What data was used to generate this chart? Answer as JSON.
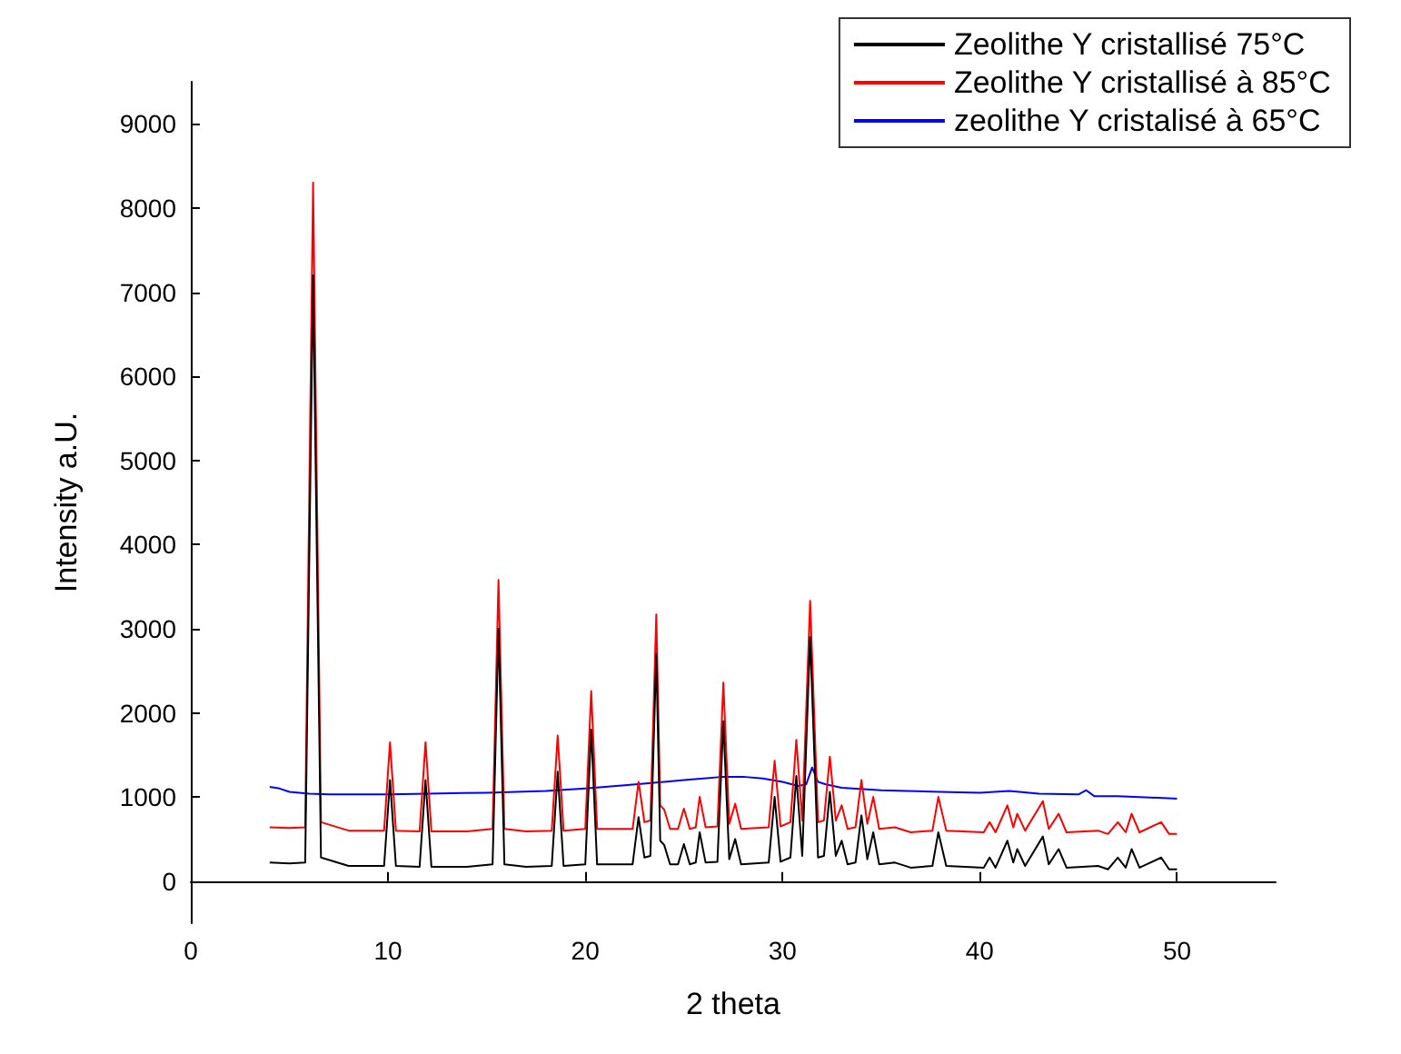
{
  "chart_data": {
    "type": "line",
    "xlabel": "2 theta",
    "ylabel": "Intensity a.U.",
    "xlim": [
      0,
      55
    ],
    "xticks": [
      0,
      10,
      20,
      30,
      40,
      50
    ],
    "ylim": [
      -500,
      9500
    ],
    "yticks": [
      0,
      1000,
      2000,
      3000,
      4000,
      5000,
      6000,
      7000,
      8000,
      9000
    ],
    "grid": false,
    "legend": "top right",
    "marker": "none",
    "line_style": "solid",
    "x": [
      4,
      5,
      5.8,
      6.2,
      6.6,
      8,
      9.8,
      10.1,
      10.4,
      11.6,
      11.9,
      12.2,
      14,
      15.3,
      15.6,
      15.9,
      17,
      18.3,
      18.6,
      18.9,
      20,
      20.3,
      20.6,
      22.4,
      22.7,
      23,
      23.3,
      23.6,
      23.8,
      24,
      24.3,
      24.7,
      25,
      25.3,
      25.6,
      25.8,
      26.1,
      26.7,
      27,
      27.3,
      27.6,
      27.9,
      29.3,
      29.6,
      29.9,
      30.4,
      30.7,
      31,
      31.4,
      31.8,
      32.1,
      32.4,
      32.7,
      33,
      33.3,
      33.7,
      34,
      34.3,
      34.6,
      34.9,
      35.7,
      36.5,
      37.6,
      37.9,
      38.3,
      40.2,
      40.5,
      40.8,
      41.4,
      41.7,
      41.9,
      42.3,
      43.2,
      43.5,
      44,
      44.4,
      46,
      46.5,
      47,
      47.4,
      47.7,
      48.1,
      49.2,
      49.6,
      50
    ],
    "series": [
      {
        "name": "Zeolithe Y cristallisé 75°C",
        "color": "#000000",
        "values": [
          220,
          210,
          220,
          7200,
          280,
          180,
          180,
          1200,
          180,
          170,
          1200,
          170,
          170,
          200,
          3000,
          200,
          170,
          180,
          1300,
          180,
          200,
          1800,
          200,
          200,
          760,
          280,
          300,
          2700,
          480,
          430,
          200,
          200,
          440,
          200,
          220,
          580,
          220,
          230,
          1900,
          260,
          500,
          200,
          220,
          1000,
          230,
          280,
          1250,
          300,
          2900,
          280,
          300,
          1060,
          300,
          480,
          200,
          220,
          780,
          260,
          580,
          200,
          220,
          160,
          180,
          580,
          180,
          160,
          280,
          160,
          480,
          220,
          380,
          180,
          530,
          200,
          380,
          160,
          180,
          140,
          280,
          160,
          380,
          160,
          280,
          140,
          140
        ]
      },
      {
        "name": "Zeolithe Y cristallisé à 85°C",
        "color": "#ff0000",
        "values": [
          640,
          630,
          640,
          8300,
          700,
          600,
          600,
          1650,
          600,
          590,
          1650,
          590,
          590,
          620,
          3580,
          620,
          590,
          600,
          1730,
          600,
          620,
          2260,
          620,
          620,
          1180,
          700,
          720,
          3170,
          900,
          850,
          620,
          620,
          860,
          620,
          640,
          1000,
          640,
          650,
          2360,
          680,
          920,
          620,
          640,
          1430,
          650,
          700,
          1680,
          720,
          3330,
          700,
          720,
          1480,
          720,
          900,
          620,
          640,
          1200,
          680,
          1000,
          620,
          640,
          580,
          600,
          1000,
          600,
          580,
          700,
          580,
          900,
          640,
          800,
          600,
          950,
          620,
          800,
          580,
          600,
          560,
          700,
          580,
          800,
          580,
          700,
          560,
          560
        ]
      },
      {
        "name": "zeolithe Y cristalisé à 65°C",
        "color": "#0000ff",
        "x": [
          4,
          4.5,
          5,
          6,
          7,
          8,
          10,
          12,
          15,
          18,
          20,
          22,
          24,
          26,
          27,
          28,
          29,
          30,
          30.8,
          31.2,
          31.5,
          31.8,
          32.2,
          33,
          35,
          38,
          40,
          41.5,
          43,
          45,
          45.4,
          45.8,
          47,
          50
        ],
        "values": [
          1120,
          1100,
          1060,
          1040,
          1030,
          1030,
          1030,
          1040,
          1050,
          1070,
          1100,
          1140,
          1180,
          1220,
          1240,
          1240,
          1220,
          1180,
          1130,
          1150,
          1350,
          1180,
          1150,
          1110,
          1080,
          1060,
          1050,
          1070,
          1040,
          1030,
          1080,
          1010,
          1010,
          980
        ]
      }
    ]
  }
}
